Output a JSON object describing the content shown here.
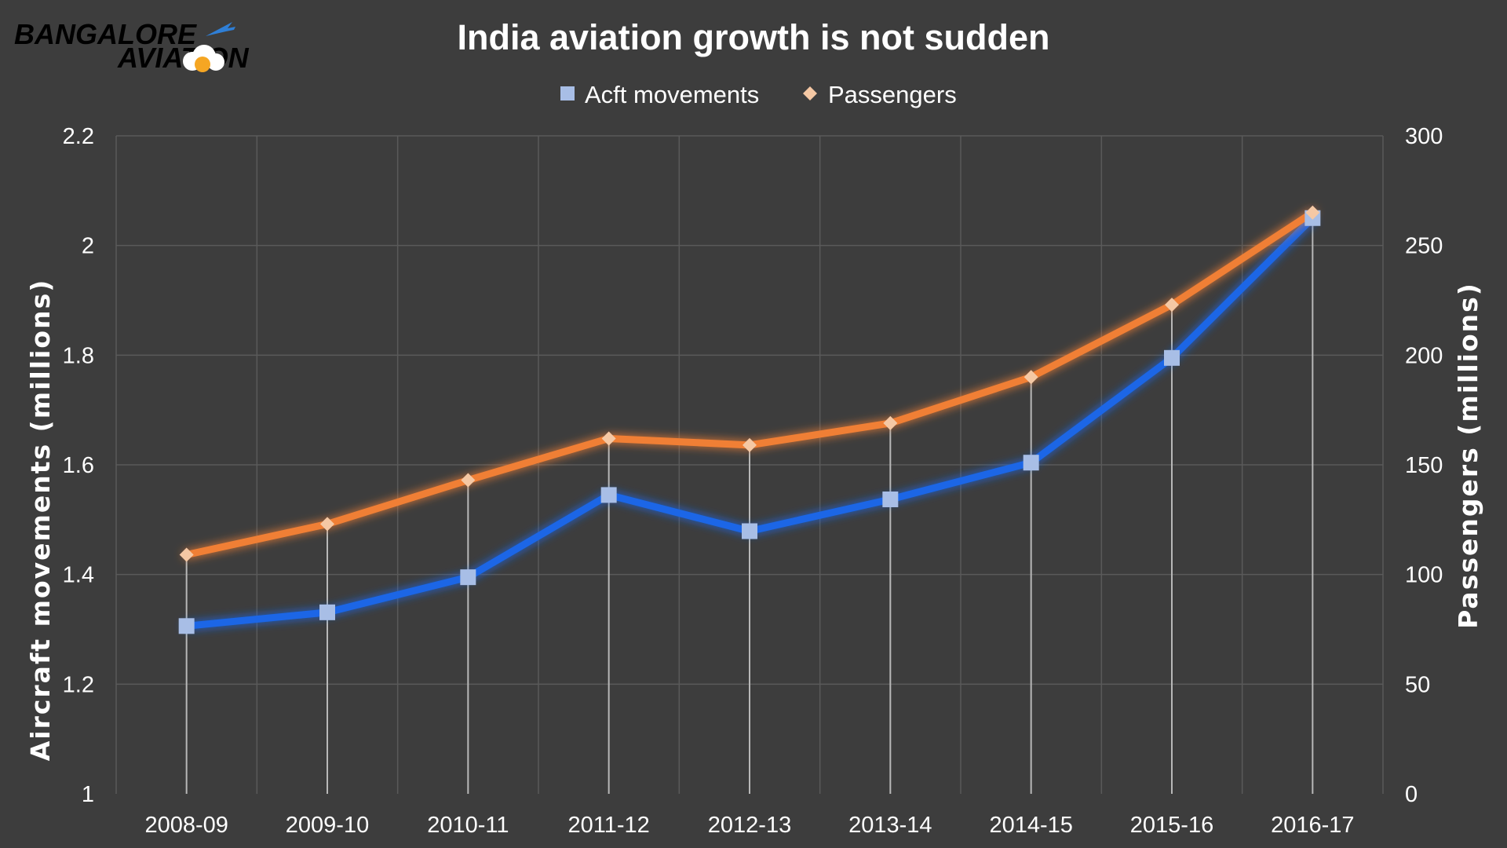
{
  "logo": {
    "line1": "BANGALORE",
    "line2": "AVIATION",
    "color_primary": "#f5a623",
    "color_secondary": "#2f7fd6"
  },
  "chart_data": {
    "type": "line",
    "title": "India aviation growth is not sudden",
    "categories": [
      "2008-09",
      "2009-10",
      "2010-11",
      "2011-12",
      "2012-13",
      "2013-14",
      "2014-15",
      "2015-16",
      "2016-17"
    ],
    "series": [
      {
        "name": "Acft movements",
        "axis": "left",
        "color": "#1a66e6",
        "marker": "square",
        "values": [
          1.306,
          1.331,
          1.395,
          1.545,
          1.479,
          1.537,
          1.604,
          1.795,
          2.05
        ]
      },
      {
        "name": "Passengers",
        "axis": "right",
        "color": "#f07f34",
        "marker": "diamond",
        "values": [
          109,
          123,
          143,
          162,
          159,
          169,
          190,
          223,
          265
        ]
      }
    ],
    "y_left": {
      "label": "Aircraft movements (millions)",
      "range": [
        1,
        2.2
      ],
      "ticks": [
        "1",
        "1.2",
        "1.4",
        "1.6",
        "1.8",
        "2",
        "2.2"
      ]
    },
    "y_right": {
      "label": "Passengers (millions)",
      "range": [
        0,
        300
      ],
      "ticks": [
        "0",
        "50",
        "100",
        "150",
        "200",
        "250",
        "300"
      ]
    },
    "grid": true,
    "legend_position": "top-center",
    "drop_lines": true
  }
}
